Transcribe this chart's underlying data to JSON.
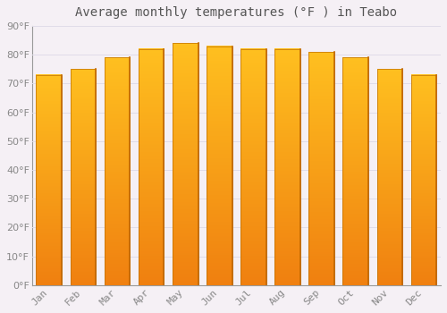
{
  "title": "Average monthly temperatures (°F ) in Teabo",
  "months": [
    "Jan",
    "Feb",
    "Mar",
    "Apr",
    "May",
    "Jun",
    "Jul",
    "Aug",
    "Sep",
    "Oct",
    "Nov",
    "Dec"
  ],
  "values": [
    73,
    75,
    79,
    82,
    84,
    83,
    82,
    82,
    81,
    79,
    75,
    73
  ],
  "bar_color_top": "#FFC020",
  "bar_color_bottom": "#F08010",
  "bar_color_right": "#E07800",
  "background_color": "#F5F0F5",
  "plot_bg_color": "#F5F0F5",
  "grid_color": "#E0DCE8",
  "text_color": "#888888",
  "title_color": "#555555",
  "ylim": [
    0,
    90
  ],
  "yticks": [
    0,
    10,
    20,
    30,
    40,
    50,
    60,
    70,
    80,
    90
  ],
  "title_fontsize": 10,
  "tick_fontsize": 8,
  "bar_width": 0.75
}
